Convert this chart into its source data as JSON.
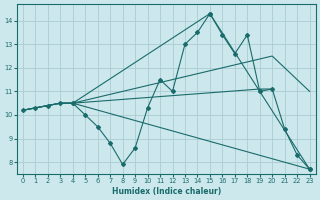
{
  "xlabel": "Humidex (Indice chaleur)",
  "bg_color": "#cce8ec",
  "grid_color": "#aaccd4",
  "line_color": "#1a6b6b",
  "xlim": [
    -0.5,
    23.5
  ],
  "ylim": [
    7.5,
    14.7
  ],
  "xticks": [
    0,
    1,
    2,
    3,
    4,
    5,
    6,
    7,
    8,
    9,
    10,
    11,
    12,
    13,
    14,
    15,
    16,
    17,
    18,
    19,
    20,
    21,
    22,
    23
  ],
  "yticks": [
    8,
    9,
    10,
    11,
    12,
    13,
    14
  ],
  "series1": [
    [
      0,
      10.2
    ],
    [
      1,
      10.3
    ],
    [
      2,
      10.4
    ],
    [
      3,
      10.5
    ],
    [
      4,
      10.5
    ],
    [
      5,
      10.0
    ],
    [
      6,
      9.5
    ],
    [
      7,
      8.8
    ],
    [
      8,
      7.9
    ],
    [
      9,
      8.6
    ],
    [
      10,
      10.3
    ],
    [
      11,
      11.5
    ],
    [
      12,
      11.0
    ],
    [
      13,
      13.0
    ],
    [
      14,
      13.5
    ],
    [
      15,
      14.3
    ],
    [
      16,
      13.4
    ],
    [
      17,
      12.6
    ],
    [
      18,
      13.4
    ],
    [
      19,
      11.0
    ],
    [
      20,
      11.1
    ],
    [
      21,
      9.4
    ],
    [
      22,
      8.3
    ],
    [
      23,
      7.7
    ]
  ],
  "line2": [
    [
      0,
      10.2
    ],
    [
      1,
      10.3
    ],
    [
      2,
      10.4
    ],
    [
      3,
      10.5
    ],
    [
      4,
      10.5
    ],
    [
      20,
      12.5
    ],
    [
      23,
      11.0
    ]
  ],
  "line3": [
    [
      0,
      10.2
    ],
    [
      1,
      10.3
    ],
    [
      2,
      10.4
    ],
    [
      3,
      10.5
    ],
    [
      4,
      10.5
    ],
    [
      19,
      11.1
    ],
    [
      20,
      11.1
    ]
  ],
  "line4": [
    [
      0,
      10.2
    ],
    [
      1,
      10.3
    ],
    [
      2,
      10.4
    ],
    [
      3,
      10.5
    ],
    [
      4,
      10.5
    ],
    [
      23,
      7.7
    ]
  ],
  "line5": [
    [
      4,
      10.5
    ],
    [
      15,
      14.3
    ],
    [
      19,
      11.0
    ],
    [
      23,
      7.7
    ]
  ]
}
